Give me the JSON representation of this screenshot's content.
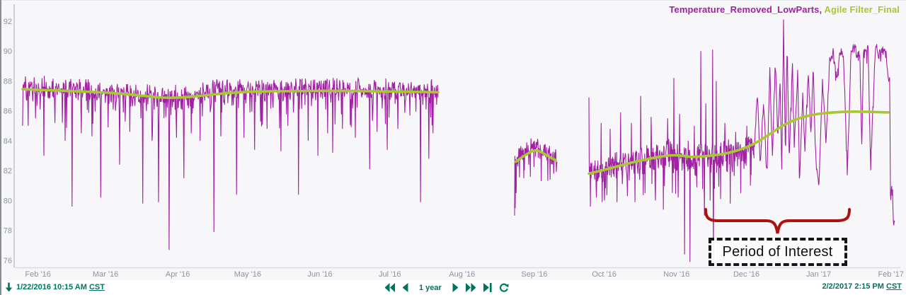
{
  "legend": {
    "series1_label": "Temperature_Removed_LowParts",
    "separator": ", ",
    "series2_label": "Agile Filter_Final"
  },
  "annotation": {
    "label": "Period of Interest",
    "brace_color": "#af1010"
  },
  "footer": {
    "start_time": "1/22/2016 10:15 AM",
    "start_tz": "CST",
    "end_time": "2/2/2017 2:15 PM",
    "end_tz": "CST",
    "duration_label": "1 year"
  },
  "colors": {
    "series1": "#a220a3",
    "series2": "#a8c832",
    "axis_text": "#8d939e",
    "axis_line": "#c2c7d0",
    "plot_bottom_line": "#d9dde3",
    "footer_green": "#00745e",
    "plot_bg": "#f7f7f9"
  },
  "chart_data": {
    "type": "line",
    "title": "",
    "xlabel": "",
    "ylabel": "",
    "legend_position": "top-right",
    "grid": false,
    "y_axis": {
      "min": 75.53,
      "max": 93.23,
      "ticks": [
        92,
        90,
        88,
        86,
        84,
        82,
        80,
        78,
        76
      ]
    },
    "x_axis": {
      "ticks": [
        {
          "label": "Feb '16",
          "f": 0.0254
        },
        {
          "label": "Mar '16",
          "f": 0.1023
        },
        {
          "label": "Apr '16",
          "f": 0.1845
        },
        {
          "label": "May '16",
          "f": 0.264
        },
        {
          "label": "Jun '16",
          "f": 0.3462
        },
        {
          "label": "Jul '16",
          "f": 0.4257
        },
        {
          "label": "Aug '16",
          "f": 0.5079
        },
        {
          "label": "Sep '16",
          "f": 0.5901
        },
        {
          "label": "Oct '16",
          "f": 0.6696
        },
        {
          "label": "Nov '16",
          "f": 0.7518
        },
        {
          "label": "Dec '16",
          "f": 0.8313
        },
        {
          "label": "Jan '17",
          "f": 0.9135
        },
        {
          "label": "Feb '17",
          "f": 0.9957
        }
      ]
    },
    "series": [
      {
        "name": "Temperature_Removed_LowParts",
        "color": "#a220a3",
        "style": "noisy",
        "stroke_width": 1.1,
        "segments": [
          {
            "f0": 0.008,
            "f1": 0.4806,
            "n": 900,
            "seed": 7,
            "noise": [
              0.9,
              1.5
            ],
            "trend": [
              [
                0.008,
                87.55
              ],
              [
                0.06,
                87.4
              ],
              [
                0.12,
                87.1
              ],
              [
                0.155,
                86.95
              ],
              [
                0.175,
                86.9
              ],
              [
                0.21,
                87.1
              ],
              [
                0.24,
                87.35
              ],
              [
                0.3,
                87.4
              ],
              [
                0.36,
                87.45
              ],
              [
                0.42,
                87.35
              ],
              [
                0.45,
                87.3
              ],
              [
                0.4806,
                87.3
              ]
            ],
            "spikes": [
              [
                0.0145,
                85.0
              ],
              [
                0.0225,
                85.5
              ],
              [
                0.0322,
                83.0
              ],
              [
                0.045,
                85.2
              ],
              [
                0.0564,
                84.0
              ],
              [
                0.0644,
                79.6
              ],
              [
                0.075,
                84.5
              ],
              [
                0.0869,
                84.3
              ],
              [
                0.0966,
                80.2
              ],
              [
                0.105,
                84.9
              ],
              [
                0.1183,
                82.4
              ],
              [
                0.13,
                84.6
              ],
              [
                0.1449,
                79.8
              ],
              [
                0.155,
                84.0
              ],
              [
                0.1626,
                79.9
              ],
              [
                0.1747,
                76.7
              ],
              [
                0.183,
                84.2
              ],
              [
                0.1916,
                81.5
              ],
              [
                0.2,
                84.5
              ],
              [
                0.21,
                84.0
              ],
              [
                0.2254,
                77.9
              ],
              [
                0.2335,
                84.3
              ],
              [
                0.2512,
                80.4
              ],
              [
                0.26,
                84.2
              ],
              [
                0.2721,
                83.4
              ],
              [
                0.286,
                84.8
              ],
              [
                0.3019,
                83.3
              ],
              [
                0.31,
                85.0
              ],
              [
                0.3221,
                80.4
              ],
              [
                0.333,
                84.0
              ],
              [
                0.3438,
                83.0
              ],
              [
                0.355,
                84.5
              ],
              [
                0.3607,
                83.2
              ],
              [
                0.372,
                84.8
              ],
              [
                0.3865,
                84.2
              ],
              [
                0.4026,
                82.1
              ],
              [
                0.411,
                84.6
              ],
              [
                0.4227,
                83.4
              ],
              [
                0.435,
                84.8
              ],
              [
                0.4605,
                79.9
              ],
              [
                0.4702,
                82.8
              ],
              [
                0.475,
                84.5
              ]
            ]
          },
          {
            "f0": 0.5676,
            "f1": 0.6159,
            "n": 130,
            "seed": 11,
            "noise": [
              0.95,
              0.95
            ],
            "trend": [
              [
                0.5676,
                82.4
              ],
              [
                0.575,
                82.9
              ],
              [
                0.5918,
                83.4
              ],
              [
                0.6,
                83.0
              ],
              [
                0.6159,
                82.6
              ]
            ],
            "spikes": [
              [
                0.5676,
                79.0
              ],
              [
                0.5684,
                79.5
              ],
              [
                0.5695,
                80.5
              ],
              [
                0.578,
                81.5
              ],
              [
                0.598,
                81.3
              ],
              [
                0.608,
                81.4
              ],
              [
                0.612,
                81.8
              ]
            ]
          },
          {
            "f0": 0.6522,
            "f1": 0.84,
            "n": 460,
            "seed": 23,
            "noise": [
              1.2,
              1.4
            ],
            "trend": [
              [
                0.6522,
                81.6
              ],
              [
                0.67,
                82.0
              ],
              [
                0.7,
                82.4
              ],
              [
                0.72,
                82.7
              ],
              [
                0.7448,
                83.0
              ],
              [
                0.76,
                82.6
              ],
              [
                0.7689,
                82.3
              ],
              [
                0.78,
                82.8
              ],
              [
                0.7931,
                82.7
              ],
              [
                0.81,
                83.0
              ],
              [
                0.825,
                83.0
              ],
              [
                0.84,
                83.3
              ]
            ],
            "spikes": [
              [
                0.6522,
                86.9
              ],
              [
                0.654,
                79.6
              ],
              [
                0.666,
                85.2
              ],
              [
                0.6699,
                80.0
              ],
              [
                0.6763,
                84.8
              ],
              [
                0.684,
                79.9
              ],
              [
                0.6884,
                85.9
              ],
              [
                0.696,
                80.3
              ],
              [
                0.7005,
                85.2
              ],
              [
                0.7045,
                79.9
              ],
              [
                0.711,
                87.0
              ],
              [
                0.716,
                80.5
              ],
              [
                0.7231,
                85.6
              ],
              [
                0.728,
                80.0
              ],
              [
                0.7367,
                79.4
              ],
              [
                0.742,
                85.5
              ],
              [
                0.7488,
                88.2
              ],
              [
                0.7536,
                80.2
              ],
              [
                0.7552,
                85.8
              ],
              [
                0.7609,
                76.4
              ],
              [
                0.765,
                84.0
              ],
              [
                0.7673,
                75.9
              ],
              [
                0.7721,
                85.0
              ],
              [
                0.7794,
                90.0
              ],
              [
                0.7835,
                79.0
              ],
              [
                0.785,
                86.5
              ],
              [
                0.7899,
                80.0
              ],
              [
                0.7931,
                90.1
              ],
              [
                0.7939,
                76.0
              ],
              [
                0.7971,
                88.0
              ],
              [
                0.8019,
                80.1
              ],
              [
                0.8068,
                85.2
              ],
              [
                0.8132,
                79.8
              ],
              [
                0.819,
                84.6
              ],
              [
                0.825,
                80.5
              ],
              [
                0.8318,
                85.0
              ],
              [
                0.836,
                81.0
              ]
            ]
          },
          {
            "f0": 0.84,
            "f1": 1.0,
            "n": 330,
            "seed": 5,
            "noise": [
              0.55,
              0.55
            ],
            "trend": [
              [
                0.84,
                83.3
              ],
              [
                0.844,
                87.0
              ],
              [
                0.847,
                82.5
              ],
              [
                0.851,
                86.5
              ],
              [
                0.8545,
                81.8
              ],
              [
                0.858,
                88.5
              ],
              [
                0.861,
                83.0
              ],
              [
                0.864,
                89.5
              ],
              [
                0.867,
                84.0
              ],
              [
                0.8696,
                88.0
              ],
              [
                0.8716,
                81.5
              ],
              [
                0.8736,
                92.1
              ],
              [
                0.8756,
                83.0
              ],
              [
                0.8776,
                90.5
              ],
              [
                0.88,
                82.5
              ],
              [
                0.8837,
                89.0
              ],
              [
                0.8857,
                83.5
              ],
              [
                0.8897,
                88.6
              ],
              [
                0.8917,
                81.2
              ],
              [
                0.8957,
                87.3
              ],
              [
                0.8977,
                83.0
              ],
              [
                0.9018,
                88.8
              ],
              [
                0.9048,
                84.0
              ],
              [
                0.9074,
                89.0
              ],
              [
                0.9098,
                83.0
              ],
              [
                0.9138,
                81.0
              ],
              [
                0.9179,
                87.8
              ],
              [
                0.9219,
                84.0
              ],
              [
                0.9259,
                89.2
              ],
              [
                0.93,
                89.9
              ],
              [
                0.934,
                88.0
              ],
              [
                0.938,
                90.0
              ],
              [
                0.942,
                89.3
              ],
              [
                0.946,
                82.0
              ],
              [
                0.948,
                85.0
              ],
              [
                0.9501,
                89.8
              ],
              [
                0.954,
                90.2
              ],
              [
                0.9605,
                89.4
              ],
              [
                0.9625,
                83.5
              ],
              [
                0.9646,
                89.9
              ],
              [
                0.97,
                90.0
              ],
              [
                0.9726,
                82.0
              ],
              [
                0.975,
                86.0
              ],
              [
                0.9783,
                90.3
              ],
              [
                0.982,
                89.6
              ],
              [
                0.9863,
                89.9
              ],
              [
                0.9903,
                89.9
              ],
              [
                0.992,
                88.5
              ],
              [
                0.9944,
                88.0
              ],
              [
                0.9952,
                79.5
              ],
              [
                0.996,
                80.5
              ],
              [
                0.9975,
                81.0
              ],
              [
                0.9984,
                78.6
              ],
              [
                1.0,
                78.3
              ]
            ],
            "spikes": []
          }
        ]
      },
      {
        "name": "Agile Filter_Final",
        "color": "#a8c832",
        "style": "smooth",
        "stroke_width": 3.6,
        "segments": [
          {
            "points": [
              [
                0.008,
                87.45
              ],
              [
                0.05,
                87.35
              ],
              [
                0.1,
                87.25
              ],
              [
                0.13,
                87.1
              ],
              [
                0.155,
                86.95
              ],
              [
                0.17,
                86.87
              ],
              [
                0.19,
                86.9
              ],
              [
                0.21,
                87.0
              ],
              [
                0.24,
                87.2
              ],
              [
                0.27,
                87.3
              ],
              [
                0.32,
                87.33
              ],
              [
                0.37,
                87.35
              ],
              [
                0.42,
                87.3
              ],
              [
                0.45,
                87.28
              ],
              [
                0.4806,
                87.25
              ]
            ]
          },
          {
            "points": [
              [
                0.5692,
                82.6
              ],
              [
                0.578,
                83.0
              ],
              [
                0.5918,
                83.45
              ],
              [
                0.602,
                83.1
              ],
              [
                0.6143,
                82.7
              ]
            ]
          },
          {
            "points": [
              [
                0.6522,
                81.8
              ],
              [
                0.6763,
                82.15
              ],
              [
                0.7005,
                82.55
              ],
              [
                0.7246,
                82.85
              ],
              [
                0.7448,
                83.05
              ],
              [
                0.76,
                83.0
              ],
              [
                0.7689,
                82.9
              ],
              [
                0.7931,
                83.0
              ],
              [
                0.8172,
                83.25
              ],
              [
                0.8414,
                83.8
              ],
              [
                0.8615,
                84.6
              ],
              [
                0.8776,
                85.2
              ],
              [
                0.8977,
                85.65
              ],
              [
                0.9178,
                85.85
              ],
              [
                0.942,
                85.95
              ],
              [
                0.9661,
                85.95
              ],
              [
                0.9927,
                85.9
              ]
            ]
          }
        ]
      }
    ],
    "annotations": [
      {
        "type": "brace",
        "f1": 0.785,
        "f2": 0.9485,
        "label": "Period of Interest"
      }
    ]
  }
}
